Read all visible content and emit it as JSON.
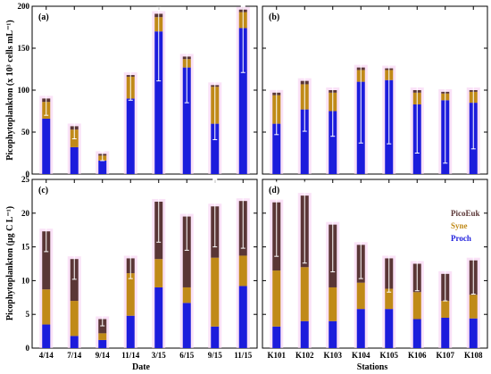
{
  "colors": {
    "picoeuk": "#5a3636",
    "syne": "#c08a18",
    "proch": "#1c1cdc",
    "errorbar": "#ffffff",
    "halo": "#f6cff2"
  },
  "legend": [
    "PicoEuk",
    "Syne",
    "Proch"
  ],
  "axes": {
    "top_ylabel": "Picophytoplankton (x 10³ cells mL⁻¹)",
    "bottom_ylabel": "Picophytoplankton (μg C L⁻¹)",
    "left_xlabel": "Date",
    "right_xlabel": "Stations"
  },
  "chart_data": [
    {
      "type": "bar",
      "stacked": true,
      "panel": "(a)",
      "categories": [
        "4/14",
        "7/14",
        "9/14",
        "11/14",
        "3/15",
        "6/15",
        "9/15",
        "11/15"
      ],
      "series": [
        {
          "name": "Proch",
          "values": [
            66,
            32,
            16,
            90,
            170,
            127,
            60,
            174
          ]
        },
        {
          "name": "Syne",
          "values": [
            20,
            21,
            6,
            26,
            17,
            10,
            44,
            19
          ]
        },
        {
          "name": "PicoEuk",
          "values": [
            4,
            4,
            2,
            2,
            4,
            3,
            2,
            3
          ]
        }
      ],
      "error": [
        [
          20,
          21
        ],
        [
          15,
          10
        ],
        [
          8,
          3
        ],
        [
          30,
          22
        ],
        [
          80,
          8
        ],
        [
          55,
          5
        ],
        [
          65,
          10
        ],
        [
          75,
          6
        ]
      ],
      "ylim": [
        0,
        200
      ],
      "yticks": [
        0,
        50,
        100,
        150,
        200
      ],
      "grid": false
    },
    {
      "type": "bar",
      "stacked": true,
      "panel": "(b)",
      "categories": [
        "K101",
        "K102",
        "K103",
        "K104",
        "K105",
        "K106",
        "K107",
        "K108"
      ],
      "series": [
        {
          "name": "Proch",
          "values": [
            60,
            77,
            75,
            110,
            112,
            83,
            88,
            85
          ]
        },
        {
          "name": "Syne",
          "values": [
            34,
            30,
            22,
            14,
            12,
            14,
            8,
            13
          ]
        },
        {
          "name": "PicoEuk",
          "values": [
            3,
            4,
            3,
            3,
            2,
            3,
            2,
            2
          ]
        }
      ],
      "error": [
        [
          50,
          20
        ],
        [
          60,
          22
        ],
        [
          55,
          20
        ],
        [
          90,
          24
        ],
        [
          90,
          22
        ],
        [
          75,
          22
        ],
        [
          85,
          20
        ],
        [
          70,
          20
        ]
      ],
      "ylim": [
        0,
        200
      ],
      "yticks": [
        0,
        50,
        100,
        150,
        200
      ],
      "grid": false
    },
    {
      "type": "bar",
      "stacked": true,
      "panel": "(c)",
      "categories": [
        "4/14",
        "7/14",
        "9/14",
        "11/14",
        "3/15",
        "6/15",
        "9/15",
        "11/15"
      ],
      "series": [
        {
          "name": "Proch",
          "values": [
            3.5,
            1.8,
            1.2,
            4.8,
            9.0,
            6.7,
            3.2,
            9.2
          ]
        },
        {
          "name": "Syne",
          "values": [
            5.2,
            5.2,
            1.0,
            6.3,
            4.2,
            2.3,
            10.2,
            4.5
          ]
        },
        {
          "name": "PicoEuk",
          "values": [
            8.6,
            6.2,
            2.1,
            2.2,
            8.5,
            10.5,
            7.6,
            8.1
          ]
        }
      ],
      "error": [
        [
          3.0,
          3.0
        ],
        [
          3.0,
          2.0
        ],
        [
          1.0,
          1.0
        ],
        [
          3.0,
          2.0
        ],
        [
          6.0,
          2.0
        ],
        [
          5.0,
          3.0
        ],
        [
          6.0,
          4.0
        ],
        [
          7.0,
          2.0
        ]
      ],
      "ylim": [
        0,
        25
      ],
      "yticks": [
        0,
        5,
        10,
        15,
        20,
        25
      ],
      "grid": false
    },
    {
      "type": "bar",
      "stacked": true,
      "panel": "(d)",
      "categories": [
        "K101",
        "K102",
        "K103",
        "K104",
        "K105",
        "K106",
        "K107",
        "K108"
      ],
      "series": [
        {
          "name": "Proch",
          "values": [
            3.2,
            4.0,
            4.0,
            5.8,
            5.8,
            4.3,
            4.5,
            4.4
          ]
        },
        {
          "name": "Syne",
          "values": [
            8.3,
            8.0,
            5.0,
            3.9,
            3.0,
            4.0,
            2.5,
            3.5
          ]
        },
        {
          "name": "PicoEuk",
          "values": [
            10.1,
            10.6,
            9.3,
            5.6,
            4.5,
            4.2,
            4.0,
            5.1
          ]
        }
      ],
      "error": [
        [
          8.0,
          3.0
        ],
        [
          10.0,
          2.0
        ],
        [
          7.0,
          3.0
        ],
        [
          5.0,
          2.5
        ],
        [
          5.0,
          2.5
        ],
        [
          4.0,
          2.0
        ],
        [
          4.0,
          2.0
        ],
        [
          5.0,
          2.0
        ]
      ],
      "ylim": [
        0,
        25
      ],
      "yticks": [
        0,
        5,
        10,
        15,
        20,
        25
      ],
      "grid": false
    }
  ]
}
